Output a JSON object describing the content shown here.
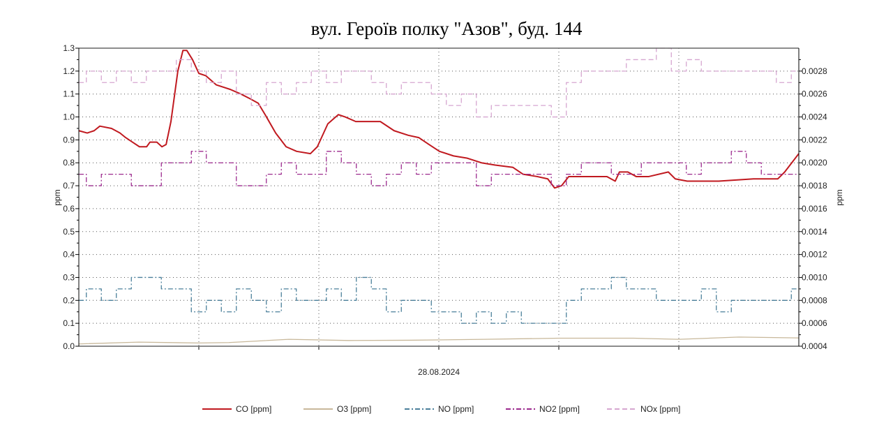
{
  "chart_data": {
    "type": "line",
    "title": "вул. Героїв полку \"Азов\", буд. 144",
    "xlabel": "28.08.2024",
    "ylabel": "ppm",
    "y2label": "ppm",
    "xlim": [
      0,
      24
    ],
    "ylim": [
      0,
      1.3
    ],
    "y2lim": [
      0.0004,
      0.003
    ],
    "yticks": [
      "0.0",
      "0.1",
      "0.2",
      "0.3",
      "0.4",
      "0.5",
      "0.6",
      "0.7",
      "0.8",
      "0.9",
      "1.0",
      "1.1",
      "1.2",
      "1.3"
    ],
    "y2ticks": [
      "0.0004",
      "0.0006",
      "0.0008",
      "0.0010",
      "0.0012",
      "0.0014",
      "0.0016",
      "0.0018",
      "0.0020",
      "0.0022",
      "0.0024",
      "0.0026",
      "0.0028"
    ],
    "grid": true,
    "legend": "bottom",
    "step_x_interval": 0.5,
    "series": [
      {
        "name": "CO [ppm]",
        "color": "#c0191f",
        "style": "solid",
        "x": [
          0,
          0.28,
          0.51,
          0.7,
          1.09,
          1.37,
          1.56,
          1.79,
          2.02,
          2.26,
          2.37,
          2.6,
          2.77,
          2.91,
          3.07,
          3.3,
          3.47,
          3.6,
          3.79,
          4.0,
          4.23,
          4.58,
          5.05,
          5.4,
          5.7,
          5.98,
          6.21,
          6.56,
          6.91,
          7.26,
          7.72,
          7.95,
          8.3,
          8.65,
          8.88,
          9.23,
          10.05,
          10.51,
          10.98,
          11.33,
          11.67,
          12.02,
          12.49,
          12.95,
          13.42,
          13.88,
          14.47,
          14.81,
          15.28,
          15.63,
          15.86,
          16.09,
          16.33,
          17.6,
          17.88,
          18.02,
          18.3,
          18.58,
          19.0,
          19.65,
          19.88,
          20.28,
          21.33,
          22.49,
          23.3,
          23.53,
          24
        ],
        "values": [
          0.94,
          0.93,
          0.94,
          0.96,
          0.95,
          0.93,
          0.91,
          0.89,
          0.87,
          0.87,
          0.89,
          0.89,
          0.87,
          0.88,
          0.98,
          1.2,
          1.29,
          1.29,
          1.25,
          1.19,
          1.18,
          1.14,
          1.12,
          1.1,
          1.08,
          1.06,
          1.01,
          0.93,
          0.87,
          0.85,
          0.84,
          0.87,
          0.97,
          1.01,
          1.0,
          0.98,
          0.98,
          0.94,
          0.92,
          0.91,
          0.88,
          0.85,
          0.83,
          0.82,
          0.8,
          0.79,
          0.78,
          0.75,
          0.74,
          0.73,
          0.69,
          0.7,
          0.74,
          0.74,
          0.72,
          0.76,
          0.76,
          0.74,
          0.74,
          0.76,
          0.73,
          0.72,
          0.72,
          0.73,
          0.73,
          0.76,
          0.84
        ]
      },
      {
        "name": "O3 [ppm]",
        "color": "#c8b89a",
        "style": "solid",
        "x": [
          0,
          2,
          4,
          5,
          7,
          9,
          11,
          13.5,
          16,
          18.5,
          20,
          22,
          24
        ],
        "values": [
          0.01,
          0.018,
          0.014,
          0.016,
          0.03,
          0.025,
          0.026,
          0.03,
          0.035,
          0.035,
          0.03,
          0.04,
          0.036
        ]
      },
      {
        "name": "NO [ppm]",
        "color": "#4a7f9a",
        "style": "dashdot",
        "step": true,
        "values": [
          0.2,
          0.25,
          0.2,
          0.25,
          0.3,
          0.3,
          0.25,
          0.25,
          0.15,
          0.2,
          0.15,
          0.25,
          0.2,
          0.15,
          0.25,
          0.2,
          0.2,
          0.25,
          0.2,
          0.3,
          0.25,
          0.15,
          0.2,
          0.2,
          0.15,
          0.15,
          0.1,
          0.15,
          0.1,
          0.15,
          0.1,
          0.1,
          0.1,
          0.2,
          0.25,
          0.25,
          0.3,
          0.25,
          0.25,
          0.2,
          0.2,
          0.2,
          0.25,
          0.15,
          0.2,
          0.2,
          0.2,
          0.2,
          0.25
        ]
      },
      {
        "name": "NO2 [ppm]",
        "color": "#9c2a8e",
        "style": "dashdot",
        "step": true,
        "values": [
          0.75,
          0.7,
          0.75,
          0.75,
          0.7,
          0.7,
          0.8,
          0.8,
          0.85,
          0.8,
          0.8,
          0.7,
          0.7,
          0.75,
          0.8,
          0.75,
          0.75,
          0.85,
          0.8,
          0.75,
          0.7,
          0.75,
          0.8,
          0.75,
          0.8,
          0.8,
          0.8,
          0.7,
          0.75,
          0.75,
          0.75,
          0.75,
          0.7,
          0.75,
          0.8,
          0.8,
          0.75,
          0.75,
          0.8,
          0.8,
          0.8,
          0.75,
          0.8,
          0.8,
          0.85,
          0.8,
          0.75,
          0.75,
          0.75
        ]
      },
      {
        "name": "NOx [ppm]",
        "color": "#d6a6d0",
        "style": "dashed",
        "step": true,
        "values": [
          1.15,
          1.2,
          1.15,
          1.2,
          1.15,
          1.2,
          1.2,
          1.25,
          1.2,
          1.15,
          1.2,
          1.1,
          1.05,
          1.15,
          1.1,
          1.15,
          1.2,
          1.15,
          1.2,
          1.2,
          1.15,
          1.1,
          1.15,
          1.15,
          1.1,
          1.05,
          1.1,
          1.0,
          1.05,
          1.05,
          1.05,
          1.05,
          1.0,
          1.15,
          1.2,
          1.2,
          1.2,
          1.25,
          1.25,
          1.3,
          1.2,
          1.25,
          1.2,
          1.2,
          1.2,
          1.2,
          1.2,
          1.15,
          1.2
        ]
      }
    ]
  }
}
